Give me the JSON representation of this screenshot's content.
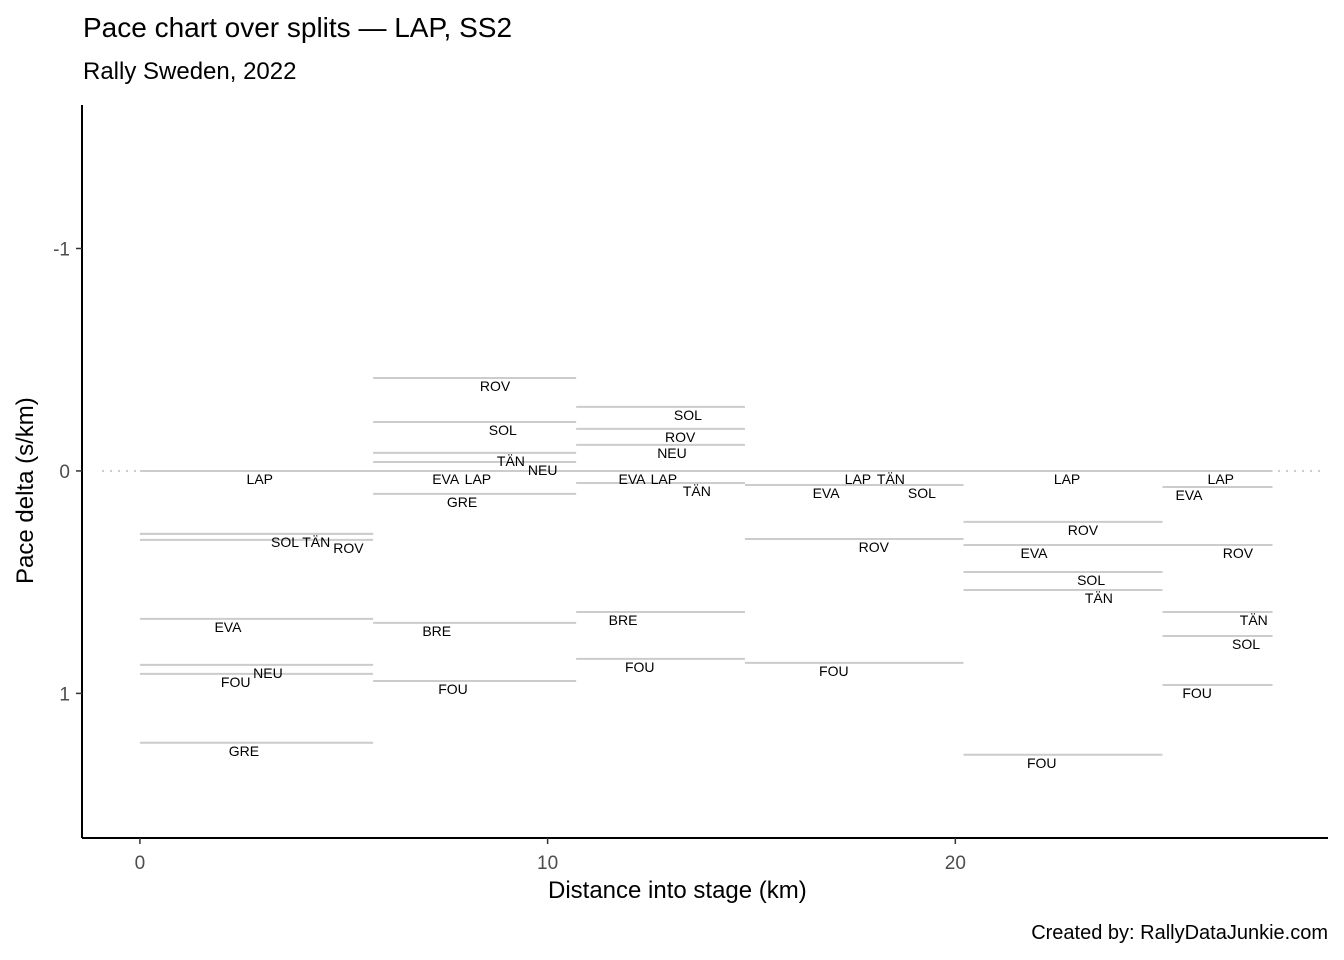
{
  "chart_data": {
    "type": "segment",
    "title": "Pace chart over splits — LAP, SS2",
    "subtitle": "Rally Sweden, 2022",
    "xlabel": "Distance into stage (km)",
    "ylabel": "Pace delta (s/km)",
    "caption": "Created by: RallyDataJunkie.com",
    "xlim": [
      -1.42,
      29.14
    ],
    "ylim": [
      -1.645,
      1.65
    ],
    "y_reversed": true,
    "xticks": [
      {
        "v": 0,
        "label": "0"
      },
      {
        "v": 10,
        "label": "10"
      },
      {
        "v": 20,
        "label": "20"
      }
    ],
    "yticks": [
      {
        "v": -1,
        "label": "-1"
      },
      {
        "v": 0,
        "label": "0"
      },
      {
        "v": 1,
        "label": "1"
      }
    ],
    "reference_line": 0,
    "grid": false,
    "line_color": "#cccccc",
    "splits": [
      {
        "start": 0,
        "end": 5.72,
        "points": [
          {
            "code": "LAP",
            "delta": 0,
            "label_x": 2.94
          },
          {
            "code": "SOL",
            "delta": 0.283,
            "label_x": 3.56
          },
          {
            "code": "TÄN",
            "delta": 0.283,
            "label_x": 3.68
          },
          {
            "code": "ROV",
            "delta": 0.31,
            "label_x": 3.34
          },
          {
            "code": "EVA",
            "delta": 0.665,
            "label_x": 2.16
          },
          {
            "code": "NEU",
            "delta": 0.872,
            "label_x": 3.14
          },
          {
            "code": "FOU",
            "delta": 0.912,
            "label_x": 2.35
          },
          {
            "code": "GRE",
            "delta": 1.222,
            "label_x": 2.55
          }
        ]
      },
      {
        "start": 5.72,
        "end": 10.7,
        "points": [
          {
            "code": "ROV",
            "delta": -0.418,
            "label_x": 8.71
          },
          {
            "code": "SOL",
            "delta": -0.22,
            "label_x": 8.9
          },
          {
            "code": "TÄN",
            "delta": -0.081,
            "label_x": 9.1
          },
          {
            "code": "NEU",
            "delta": -0.04,
            "label_x": 8.51
          },
          {
            "code": "EVA",
            "delta": 0,
            "label_x": 7.5
          },
          {
            "code": "LAP",
            "delta": 0,
            "label_x": 8.29
          },
          {
            "code": "GRE",
            "delta": 0.103,
            "label_x": 7.9
          },
          {
            "code": "BRE",
            "delta": 0.683,
            "label_x": 7.28
          },
          {
            "code": "FOU",
            "delta": 0.944,
            "label_x": 7.68
          }
        ]
      },
      {
        "start": 10.7,
        "end": 14.84,
        "points": [
          {
            "code": "SOL",
            "delta": -0.288,
            "label_x": 13.44
          },
          {
            "code": "ROV",
            "delta": -0.189,
            "label_x": 13.25
          },
          {
            "code": "NEU",
            "delta": -0.117,
            "label_x": 13.05
          },
          {
            "code": "EVA",
            "delta": 0,
            "label_x": 12.07
          },
          {
            "code": "LAP",
            "delta": 0,
            "label_x": 12.85
          },
          {
            "code": "TÄN",
            "delta": 0.054,
            "label_x": 13.66
          },
          {
            "code": "BRE",
            "delta": 0.634,
            "label_x": 11.85
          },
          {
            "code": "FOU",
            "delta": 0.845,
            "label_x": 12.26
          }
        ]
      },
      {
        "start": 14.84,
        "end": 20.2,
        "points": [
          {
            "code": "LAP",
            "delta": 0,
            "label_x": 17.61
          },
          {
            "code": "TÄN",
            "delta": 0,
            "label_x": 18.42
          },
          {
            "code": "EVA",
            "delta": 0.063,
            "label_x": 16.83
          },
          {
            "code": "SOL",
            "delta": 0.063,
            "label_x": 18.22
          },
          {
            "code": "ROV",
            "delta": 0.306,
            "label_x": 18.0
          },
          {
            "code": "FOU",
            "delta": 0.863,
            "label_x": 17.02
          }
        ]
      },
      {
        "start": 20.2,
        "end": 25.08,
        "points": [
          {
            "code": "LAP",
            "delta": 0,
            "label_x": 22.74
          },
          {
            "code": "ROV",
            "delta": 0.229,
            "label_x": 23.13
          },
          {
            "code": "EVA",
            "delta": 0.333,
            "label_x": 21.93
          },
          {
            "code": "SOL",
            "delta": 0.454,
            "label_x": 23.33
          },
          {
            "code": "TÄN",
            "delta": 0.535,
            "label_x": 23.52
          },
          {
            "code": "FOU",
            "delta": 1.276,
            "label_x": 22.12
          }
        ]
      },
      {
        "start": 25.08,
        "end": 27.78,
        "points": [
          {
            "code": "LAP",
            "delta": 0,
            "label_x": 26.51
          },
          {
            "code": "EVA",
            "delta": 0.072,
            "label_x": 25.73
          },
          {
            "code": "ROV",
            "delta": 0.333,
            "label_x": 26.93
          },
          {
            "code": "TÄN",
            "delta": 0.634,
            "label_x": 27.32
          },
          {
            "code": "SOL",
            "delta": 0.742,
            "label_x": 27.13
          },
          {
            "code": "FOU",
            "delta": 0.962,
            "label_x": 25.93
          }
        ]
      }
    ]
  }
}
